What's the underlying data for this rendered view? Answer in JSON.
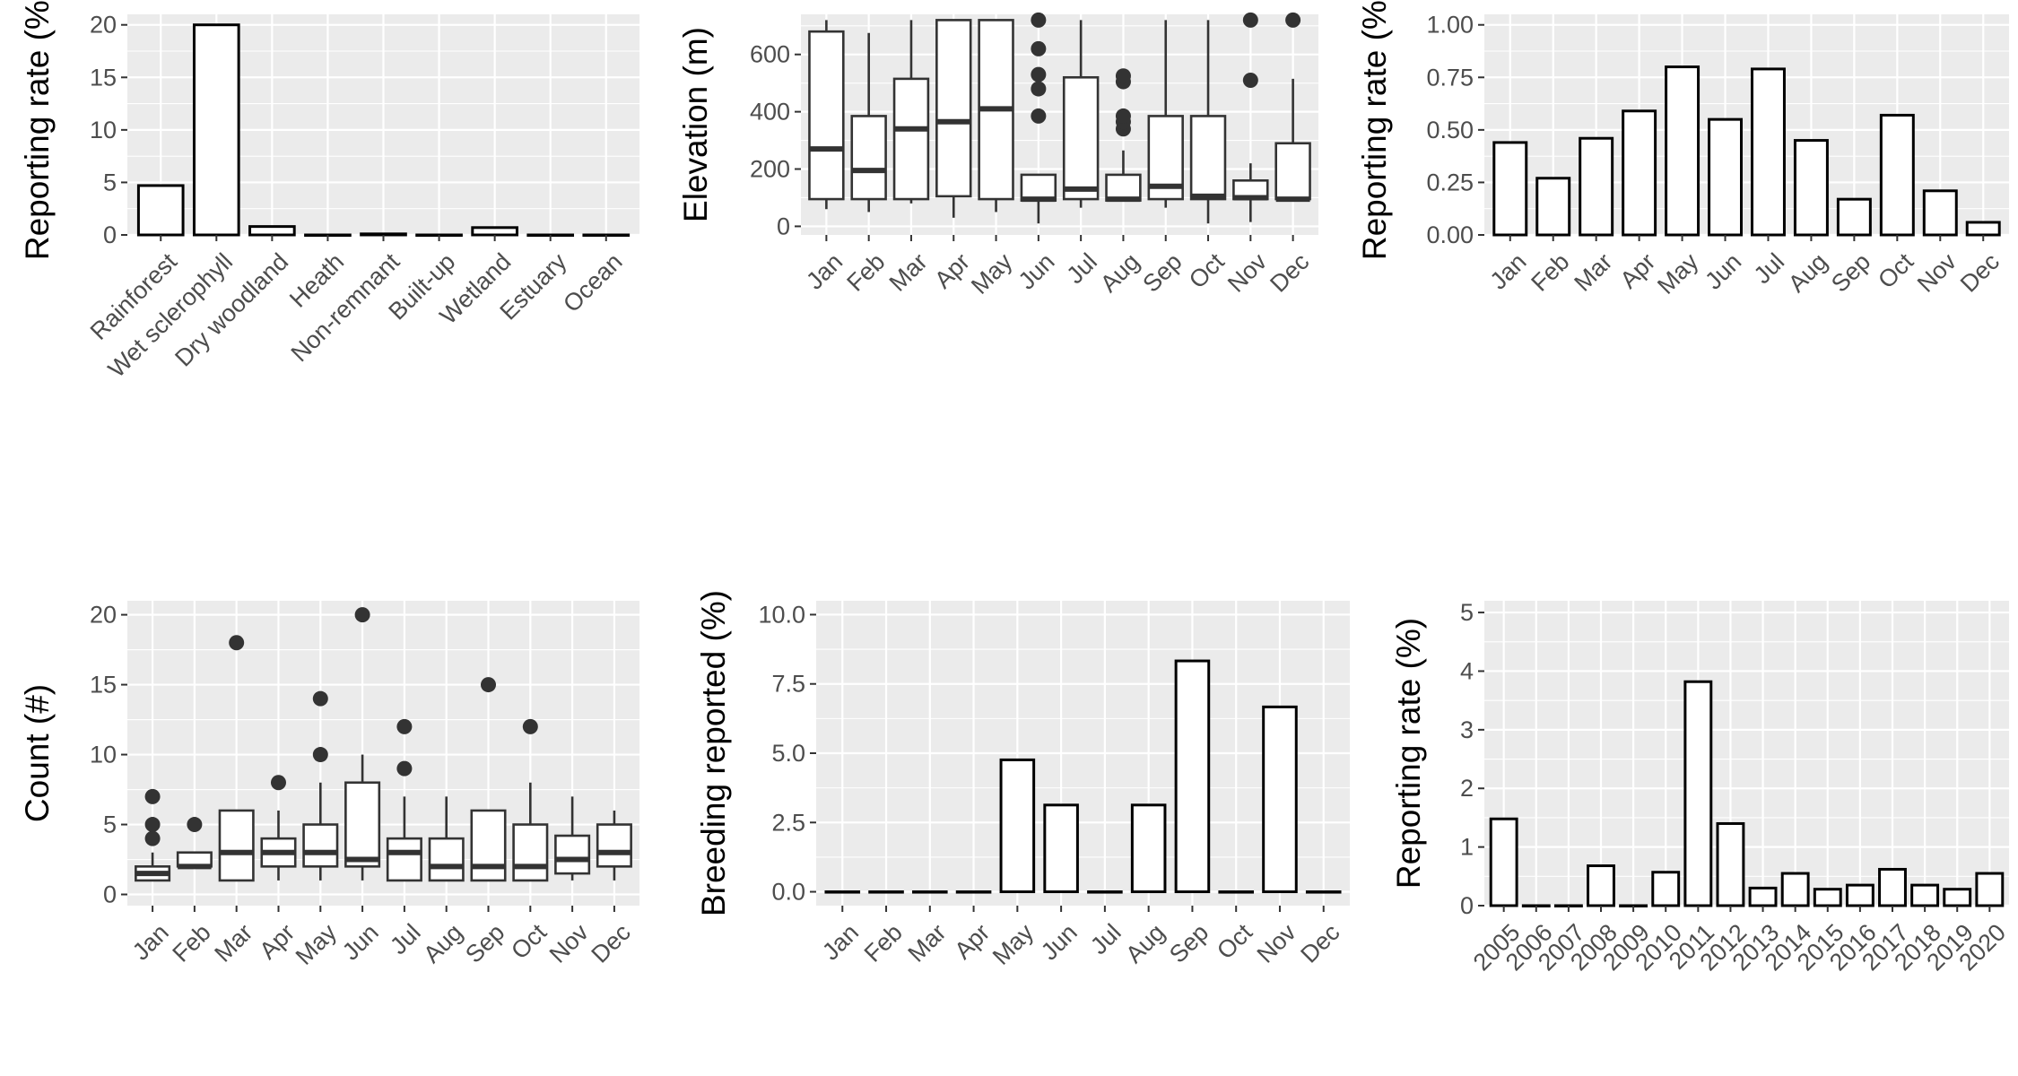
{
  "chart_data": [
    {
      "id": "habitat",
      "type": "bar",
      "ylabel": "Reporting rate (%)",
      "xlabel": "",
      "categories": [
        "Rainforest",
        "Wet sclerophyll",
        "Dry woodland",
        "Heath",
        "Non-remnant",
        "Built-up",
        "Wetland",
        "Estuary",
        "Ocean"
      ],
      "values": [
        4.7,
        20.0,
        0.8,
        0.0,
        0.1,
        0.0,
        0.7,
        0.0,
        0.0
      ],
      "ylim": [
        0,
        21
      ],
      "yticks": [
        0,
        5,
        10,
        15,
        20
      ],
      "ytick_labels": [
        "0",
        "5",
        "10",
        "15",
        "20"
      ],
      "grid": true
    },
    {
      "id": "elevation",
      "type": "box",
      "ylabel": "Elevation (m)",
      "xlabel": "",
      "categories": [
        "Jan",
        "Feb",
        "Mar",
        "Apr",
        "May",
        "Jun",
        "Jul",
        "Aug",
        "Sep",
        "Oct",
        "Nov",
        "Dec"
      ],
      "boxes": [
        {
          "min": 60,
          "q1": 95,
          "median": 270,
          "q3": 680,
          "max": 720,
          "outliers": []
        },
        {
          "min": 50,
          "q1": 95,
          "median": 195,
          "q3": 385,
          "max": 675,
          "outliers": []
        },
        {
          "min": 80,
          "q1": 95,
          "median": 340,
          "q3": 515,
          "max": 720,
          "outliers": []
        },
        {
          "min": 30,
          "q1": 105,
          "median": 365,
          "q3": 720,
          "max": 720,
          "outliers": []
        },
        {
          "min": 50,
          "q1": 95,
          "median": 410,
          "q3": 720,
          "max": 720,
          "outliers": []
        },
        {
          "min": 10,
          "q1": 90,
          "median": 95,
          "q3": 180,
          "max": 180,
          "outliers": [
            385,
            480,
            530,
            620,
            720
          ]
        },
        {
          "min": 65,
          "q1": 95,
          "median": 130,
          "q3": 520,
          "max": 720,
          "outliers": []
        },
        {
          "min": 90,
          "q1": 90,
          "median": 95,
          "q3": 180,
          "max": 265,
          "outliers": [
            340,
            365,
            385,
            505,
            525
          ]
        },
        {
          "min": 65,
          "q1": 95,
          "median": 140,
          "q3": 385,
          "max": 720,
          "outliers": []
        },
        {
          "min": 10,
          "q1": 95,
          "median": 105,
          "q3": 385,
          "max": 720,
          "outliers": []
        },
        {
          "min": 15,
          "q1": 95,
          "median": 100,
          "q3": 160,
          "max": 220,
          "outliers": [
            510,
            720
          ]
        },
        {
          "min": 90,
          "q1": 95,
          "median": 95,
          "q3": 290,
          "max": 515,
          "outliers": [
            720
          ]
        }
      ],
      "ylim": [
        -30,
        740
      ],
      "yticks": [
        0,
        200,
        400,
        600
      ],
      "ytick_labels": [
        "0",
        "200",
        "400",
        "600"
      ],
      "grid": true
    },
    {
      "id": "monthly-rate",
      "type": "bar",
      "ylabel": "Reporting rate (%)",
      "xlabel": "",
      "categories": [
        "Jan",
        "Feb",
        "Mar",
        "Apr",
        "May",
        "Jun",
        "Jul",
        "Aug",
        "Sep",
        "Oct",
        "Nov",
        "Dec"
      ],
      "values": [
        0.44,
        0.27,
        0.46,
        0.59,
        0.8,
        0.55,
        0.79,
        0.45,
        0.17,
        0.57,
        0.21,
        0.06
      ],
      "ylim": [
        0,
        1.05
      ],
      "yticks": [
        0,
        0.25,
        0.5,
        0.75,
        1.0
      ],
      "ytick_labels": [
        "0.00",
        "0.25",
        "0.50",
        "0.75",
        "1.00"
      ],
      "grid": true
    },
    {
      "id": "count",
      "type": "box",
      "ylabel": "Count (#)",
      "xlabel": "",
      "categories": [
        "Jan",
        "Feb",
        "Mar",
        "Apr",
        "May",
        "Jun",
        "Jul",
        "Aug",
        "Sep",
        "Oct",
        "Nov",
        "Dec"
      ],
      "boxes": [
        {
          "min": 1,
          "q1": 1,
          "median": 1.5,
          "q3": 2,
          "max": 3,
          "outliers": [
            4,
            5,
            7
          ]
        },
        {
          "min": 2,
          "q1": 2,
          "median": 2,
          "q3": 3,
          "max": 3,
          "outliers": [
            5
          ]
        },
        {
          "min": 1,
          "q1": 1,
          "median": 3,
          "q3": 6,
          "max": 6,
          "outliers": [
            18
          ]
        },
        {
          "min": 1,
          "q1": 2,
          "median": 3,
          "q3": 4,
          "max": 6,
          "outliers": [
            8
          ]
        },
        {
          "min": 1,
          "q1": 2,
          "median": 3,
          "q3": 5,
          "max": 8,
          "outliers": [
            10,
            14
          ]
        },
        {
          "min": 1,
          "q1": 2,
          "median": 2.5,
          "q3": 8,
          "max": 10,
          "outliers": [
            20
          ]
        },
        {
          "min": 1,
          "q1": 1,
          "median": 3,
          "q3": 4,
          "max": 7,
          "outliers": [
            9,
            12
          ]
        },
        {
          "min": 1,
          "q1": 1,
          "median": 2,
          "q3": 4,
          "max": 7,
          "outliers": []
        },
        {
          "min": 1,
          "q1": 1,
          "median": 2,
          "q3": 6,
          "max": 6,
          "outliers": [
            15
          ]
        },
        {
          "min": 1,
          "q1": 1,
          "median": 2,
          "q3": 5,
          "max": 8,
          "outliers": [
            12
          ]
        },
        {
          "min": 1,
          "q1": 1.5,
          "median": 2.5,
          "q3": 4.2,
          "max": 7,
          "outliers": []
        },
        {
          "min": 1,
          "q1": 2,
          "median": 3,
          "q3": 5,
          "max": 6,
          "outliers": []
        }
      ],
      "ylim": [
        -0.8,
        21
      ],
      "yticks": [
        0,
        5,
        10,
        15,
        20
      ],
      "ytick_labels": [
        "0",
        "5",
        "10",
        "15",
        "20"
      ],
      "grid": true
    },
    {
      "id": "breeding",
      "type": "bar",
      "ylabel": "Breeding reported (%)",
      "xlabel": "",
      "categories": [
        "Jan",
        "Feb",
        "Mar",
        "Apr",
        "May",
        "Jun",
        "Jul",
        "Aug",
        "Sep",
        "Oct",
        "Nov",
        "Dec"
      ],
      "values": [
        0,
        0,
        0,
        0,
        4.76,
        3.13,
        0,
        3.13,
        8.33,
        0,
        6.67,
        0
      ],
      "ylim": [
        -0.5,
        10.5
      ],
      "yticks": [
        0,
        2.5,
        5.0,
        7.5,
        10.0
      ],
      "ytick_labels": [
        "0.0",
        "2.5",
        "5.0",
        "7.5",
        "10.0"
      ],
      "grid": true
    },
    {
      "id": "yearly-rate",
      "type": "bar",
      "ylabel": "Reporting rate (%)",
      "xlabel": "",
      "categories": [
        "2005",
        "2006",
        "2007",
        "2008",
        "2009",
        "2010",
        "2011",
        "2012",
        "2013",
        "2014",
        "2015",
        "2016",
        "2017",
        "2018",
        "2019",
        "2020"
      ],
      "values": [
        1.48,
        0,
        0,
        0.68,
        0,
        0.57,
        3.82,
        1.4,
        0.3,
        0.55,
        0.28,
        0.35,
        0.62,
        0.35,
        0.28,
        0.55
      ],
      "ylim": [
        0,
        5.2
      ],
      "yticks": [
        0,
        1,
        2,
        3,
        4,
        5
      ],
      "ytick_labels": [
        "0",
        "1",
        "2",
        "3",
        "4",
        "5"
      ],
      "grid": true
    }
  ]
}
